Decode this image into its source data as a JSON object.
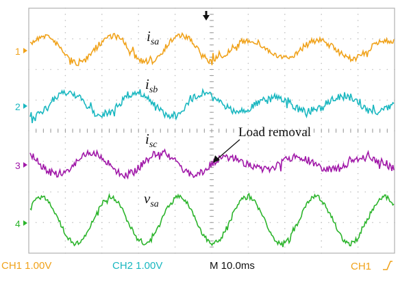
{
  "scope": {
    "colors": {
      "ch1": "#f0a21a",
      "ch2": "#19b7c0",
      "ch3": "#a018a8",
      "ch4": "#2bb42b",
      "grid": "#bdbdbd",
      "frame": "#b0b0b0",
      "text": "#111111"
    },
    "trigger_marker": "down-arrow-icon",
    "channels": [
      {
        "marker": "1",
        "label": "i",
        "sub": "sa",
        "color": "#f0a21a"
      },
      {
        "marker": "2",
        "label": "i",
        "sub": "sb",
        "color": "#19b7c0"
      },
      {
        "marker": "3",
        "label": "i",
        "sub": "sc",
        "color": "#a018a8"
      },
      {
        "marker": "4",
        "label": "v",
        "sub": "sa",
        "color": "#2bb42b"
      }
    ],
    "annotation": {
      "text": "Load removal"
    },
    "status": {
      "ch1_scale": "CH1  1.00V",
      "ch2_scale": "CH2  1.00V",
      "timebase": "M 10.0ms",
      "trigger_source": "CH1",
      "trigger_edge_icon": "rising-edge-icon"
    }
  }
}
